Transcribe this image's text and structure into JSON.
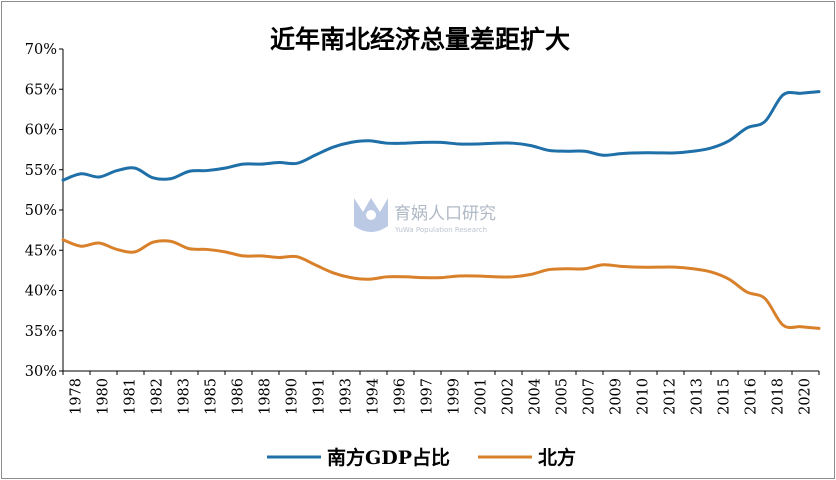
{
  "chart_data": {
    "type": "line",
    "title": "近年南北经济总量差距扩大",
    "xlabel": "",
    "ylabel": "",
    "ylim": [
      30,
      70
    ],
    "ytick_values": [
      30,
      35,
      40,
      45,
      50,
      55,
      60,
      65,
      70
    ],
    "ytick_labels": [
      "30%",
      "35%",
      "40%",
      "45%",
      "50%",
      "55%",
      "60%",
      "65%",
      "70%"
    ],
    "x": [
      1978,
      1979,
      1980,
      1981,
      1982,
      1983,
      1984,
      1985,
      1986,
      1987,
      1988,
      1989,
      1990,
      1991,
      1992,
      1993,
      1994,
      1995,
      1996,
      1997,
      1998,
      1999,
      2000,
      2001,
      2002,
      2003,
      2004,
      2005,
      2006,
      2007,
      2008,
      2009,
      2010,
      2011,
      2012,
      2013,
      2014,
      2015,
      2016,
      2017,
      2018,
      2019,
      2020
    ],
    "xtick_labels": [
      "1978",
      "1980",
      "1981",
      "1982",
      "1983",
      "1985",
      "1986",
      "1988",
      "1990",
      "1991",
      "1993",
      "1994",
      "1996",
      "1997",
      "1999",
      "2001",
      "2002",
      "2004",
      "2005",
      "2007",
      "2009",
      "2010",
      "2012",
      "2013",
      "2015",
      "2016",
      "2018",
      "2020"
    ],
    "series": [
      {
        "name": "南方GDP占比",
        "color": "#1f6fa8",
        "values": [
          53.7,
          54.5,
          54.1,
          54.9,
          55.2,
          54.0,
          53.9,
          54.8,
          54.9,
          55.2,
          55.7,
          55.7,
          55.9,
          55.8,
          56.8,
          57.8,
          58.4,
          58.6,
          58.3,
          58.3,
          58.4,
          58.4,
          58.2,
          58.2,
          58.3,
          58.3,
          58.0,
          57.4,
          57.3,
          57.3,
          56.8,
          57.0,
          57.1,
          57.1,
          57.1,
          57.3,
          57.7,
          58.6,
          60.2,
          61.0,
          64.3,
          64.5,
          64.7
        ]
      },
      {
        "name": "北方",
        "color": "#d9802b",
        "values": [
          46.3,
          45.5,
          45.9,
          45.1,
          44.8,
          46.0,
          46.1,
          45.2,
          45.1,
          44.8,
          44.3,
          44.3,
          44.1,
          44.2,
          43.2,
          42.2,
          41.6,
          41.4,
          41.7,
          41.7,
          41.6,
          41.6,
          41.8,
          41.8,
          41.7,
          41.7,
          42.0,
          42.6,
          42.7,
          42.7,
          43.2,
          43.0,
          42.9,
          42.9,
          42.9,
          42.7,
          42.3,
          41.4,
          39.8,
          39.0,
          35.7,
          35.5,
          35.3
        ]
      }
    ],
    "legend_position": "bottom",
    "grid": false,
    "watermark": {
      "text_cn": "育娲人口研究",
      "text_en": "YuWa Population Research"
    }
  }
}
